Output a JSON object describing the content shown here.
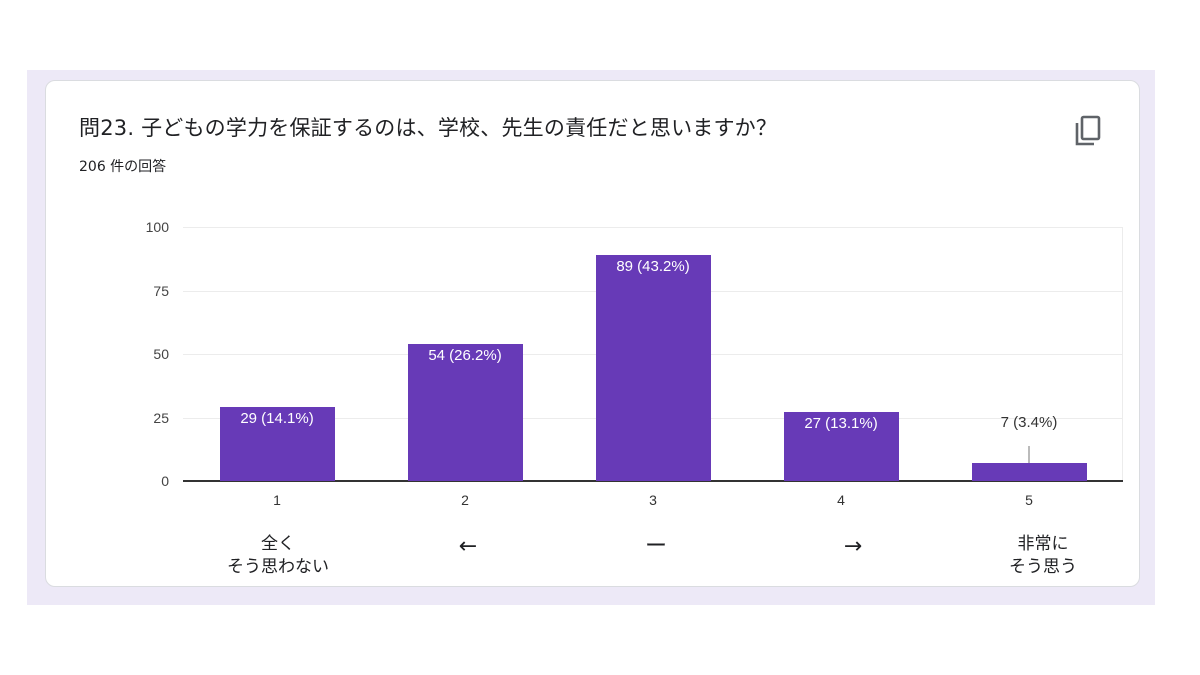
{
  "card": {
    "title": "問23.  子どもの学力を保証するのは、学校、先生の責任だと思いますか？",
    "response_count": "206 件の回答",
    "copy_icon": "copy-icon"
  },
  "colors": {
    "bar": "#673ab7",
    "frame": "#ede9f7",
    "card": "#ffffff"
  },
  "chart_data": {
    "type": "bar",
    "title": "問23.  子どもの学力を保証するのは、学校、先生の責任だと思いますか？",
    "subtitle": "206 件の回答",
    "categories": [
      "1",
      "2",
      "3",
      "4",
      "5"
    ],
    "values": [
      29,
      54,
      89,
      27,
      7
    ],
    "percentages": [
      14.1,
      26.2,
      43.2,
      13.1,
      3.4
    ],
    "data_labels": [
      "29 (14.1%)",
      "54 (26.2%)",
      "89 (43.2%)",
      "27 (13.1%)",
      "7 (3.4%)"
    ],
    "scale_labels": [
      "全く\nそう思わない",
      "←",
      "ー",
      "→",
      "非常に\nそう思う"
    ],
    "xlabel": "",
    "ylabel": "",
    "ylim": [
      0,
      100
    ],
    "yticks": [
      "0",
      "25",
      "50",
      "75",
      "100"
    ],
    "grid": true,
    "legend": "none"
  },
  "scale": {
    "low_line1": "全く",
    "low_line2": "そう思わない",
    "arrow_left": "←",
    "middle": "ー",
    "arrow_right": "→",
    "high_line1": "非常に",
    "high_line2": "そう思う"
  }
}
